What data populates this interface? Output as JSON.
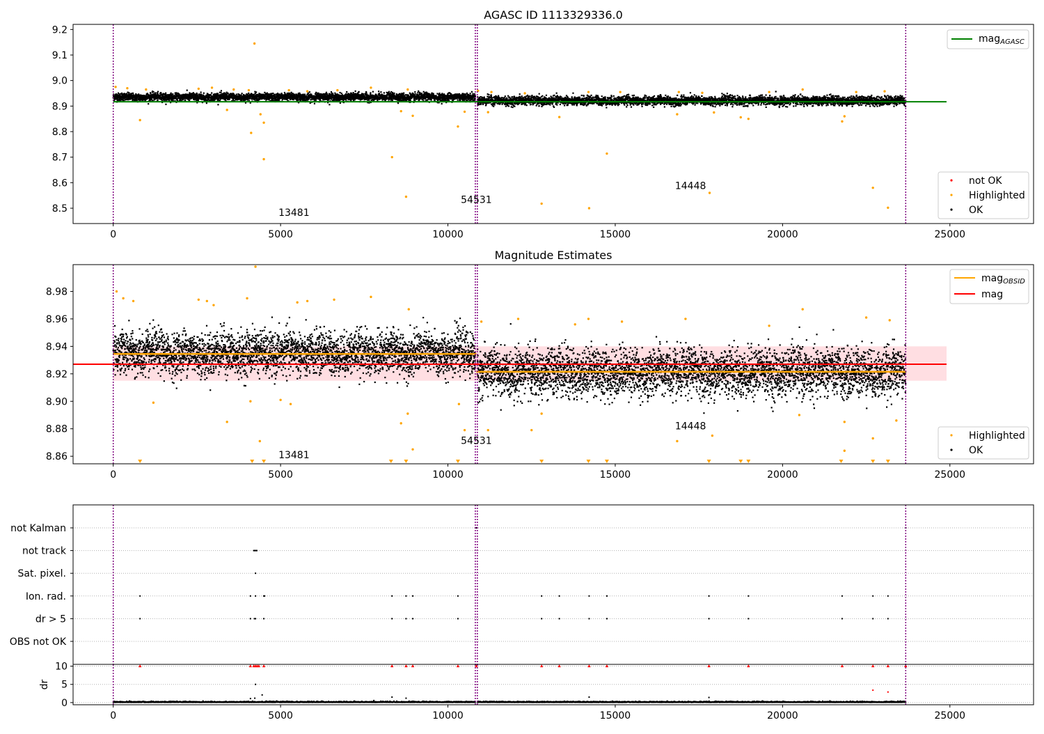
{
  "figure": {
    "title_top": "AGASC ID 1113329336.0",
    "title_middle": "Magnitude Estimates"
  },
  "colors": {
    "ok": "#000000",
    "highlighted": "#ffa500",
    "not_ok": "#ff0000",
    "mag_agasc": "#008000",
    "mag": "#ff0000",
    "mag_obsid": "#ffa500",
    "obsid_separator": "#800080",
    "band": "#ffd6db"
  },
  "chart_data": [
    {
      "id": "top",
      "type": "scatter",
      "title": "AGASC ID 1113329336.0",
      "xlim": [
        -1200,
        27500
      ],
      "ylim": [
        8.44,
        9.22
      ],
      "x_ticks": [
        0,
        5000,
        10000,
        15000,
        20000,
        25000
      ],
      "y_ticks": [
        8.5,
        8.6,
        8.7,
        8.8,
        8.9,
        9.0,
        9.1,
        9.2
      ],
      "y_tick_labels": [
        "8.5",
        "8.6",
        "8.7",
        "8.8",
        "8.9",
        "9.0",
        "9.1",
        "9.2"
      ],
      "obsid_boundaries": [
        0,
        10820,
        10880,
        23680
      ],
      "obsid_labels": [
        {
          "text": "13481",
          "x": 5400,
          "y": 8.47
        },
        {
          "text": "54531",
          "x": 10850,
          "y": 8.52
        },
        {
          "text": "14448",
          "x": 17250,
          "y": 8.575
        }
      ],
      "reference_lines": [
        {
          "name": "mag",
          "subscript": "AGASC",
          "y": 8.917,
          "x_range": [
            0,
            24900
          ],
          "color": "#008000"
        }
      ],
      "ok_segments": [
        {
          "x_range": [
            0,
            10820
          ],
          "mean": 8.935,
          "spread": 0.009
        },
        {
          "x_range": [
            10880,
            23680
          ],
          "mean": 8.921,
          "spread": 0.01
        }
      ],
      "highlighted_points": [
        [
          800,
          8.845
        ],
        [
          4120,
          8.795
        ],
        [
          4220,
          9.145
        ],
        [
          4400,
          8.868
        ],
        [
          4500,
          8.835
        ],
        [
          4500,
          8.692
        ],
        [
          3400,
          8.885
        ],
        [
          8330,
          8.7
        ],
        [
          8600,
          8.88
        ],
        [
          8750,
          8.545
        ],
        [
          8950,
          8.862
        ],
        [
          10300,
          8.82
        ],
        [
          10500,
          8.878
        ],
        [
          11200,
          8.876
        ],
        [
          12800,
          8.518
        ],
        [
          13330,
          8.857
        ],
        [
          14220,
          8.5
        ],
        [
          14750,
          8.714
        ],
        [
          16850,
          8.868
        ],
        [
          17820,
          8.56
        ],
        [
          17950,
          8.875
        ],
        [
          18750,
          8.856
        ],
        [
          18980,
          8.85
        ],
        [
          21780,
          8.84
        ],
        [
          21850,
          8.86
        ],
        [
          22700,
          8.58
        ],
        [
          23150,
          8.502
        ],
        [
          70,
          8.975
        ],
        [
          420,
          8.97
        ],
        [
          980,
          8.965
        ],
        [
          2550,
          8.968
        ],
        [
          2950,
          8.972
        ],
        [
          3600,
          8.965
        ],
        [
          4050,
          8.962
        ],
        [
          5250,
          8.962
        ],
        [
          5800,
          8.958
        ],
        [
          6700,
          8.962
        ],
        [
          7700,
          8.972
        ],
        [
          8800,
          8.965
        ],
        [
          10900,
          8.96
        ],
        [
          11300,
          8.955
        ],
        [
          12300,
          8.95
        ],
        [
          14200,
          8.955
        ],
        [
          15150,
          8.955
        ],
        [
          16900,
          8.955
        ],
        [
          17600,
          8.952
        ],
        [
          19600,
          8.955
        ],
        [
          20600,
          8.965
        ],
        [
          22200,
          8.955
        ],
        [
          23050,
          8.958
        ]
      ],
      "legend_lines": [
        {
          "label": "mag",
          "subscript": "AGASC"
        }
      ],
      "legend_points": [
        "not OK",
        "Highlighted",
        "OK"
      ]
    },
    {
      "id": "middle",
      "type": "scatter",
      "title": "Magnitude Estimates",
      "xlim": [
        -1200,
        27500
      ],
      "ylim": [
        8.8545,
        8.9995
      ],
      "x_ticks": [
        0,
        5000,
        10000,
        15000,
        20000,
        25000
      ],
      "y_ticks": [
        8.86,
        8.88,
        8.9,
        8.92,
        8.94,
        8.96,
        8.98
      ],
      "y_tick_labels": [
        "8.86",
        "8.88",
        "8.90",
        "8.92",
        "8.94",
        "8.96",
        "8.98"
      ],
      "obsid_boundaries": [
        0,
        10820,
        10880,
        23680
      ],
      "obsid_labels": [
        {
          "text": "13481",
          "x": 5400,
          "y": 8.8585
        },
        {
          "text": "54531",
          "x": 10850,
          "y": 8.869
        },
        {
          "text": "14448",
          "x": 17250,
          "y": 8.8795
        }
      ],
      "reference_lines": [
        {
          "name": "mag",
          "y": 8.927,
          "x_range": [
            -1200,
            24900
          ],
          "color": "#ff0000",
          "band": [
            8.915,
            8.94
          ]
        },
        {
          "name": "mag",
          "subscript": "OBSID",
          "segments": [
            {
              "x_range": [
                0,
                10850
              ],
              "y": 8.9345
            },
            {
              "x_range": [
                10850,
                23680
              ],
              "y": 8.9215
            }
          ],
          "color": "#ffa500"
        }
      ],
      "ok_segments": [
        {
          "x_range": [
            0,
            10820
          ],
          "mean": 8.935,
          "spread": 0.009
        },
        {
          "x_range": [
            10880,
            23680
          ],
          "mean": 8.921,
          "spread": 0.01
        }
      ],
      "highlighted_points": [
        [
          1200,
          8.899
        ],
        [
          3400,
          8.885
        ],
        [
          4100,
          8.9
        ],
        [
          4380,
          8.871
        ],
        [
          5000,
          8.901
        ],
        [
          5300,
          8.898
        ],
        [
          8600,
          8.884
        ],
        [
          8800,
          8.891
        ],
        [
          8950,
          8.865
        ],
        [
          10330,
          8.898
        ],
        [
          10500,
          8.879
        ],
        [
          11200,
          8.879
        ],
        [
          12500,
          8.879
        ],
        [
          12800,
          8.891
        ],
        [
          17900,
          8.875
        ],
        [
          16850,
          8.871
        ],
        [
          20500,
          8.89
        ],
        [
          21850,
          8.885
        ],
        [
          22700,
          8.873
        ],
        [
          23400,
          8.886
        ],
        [
          21850,
          8.864
        ],
        [
          100,
          8.98
        ],
        [
          300,
          8.975
        ],
        [
          600,
          8.973
        ],
        [
          2550,
          8.974
        ],
        [
          2800,
          8.973
        ],
        [
          3000,
          8.97
        ],
        [
          4000,
          8.975
        ],
        [
          4250,
          8.998
        ],
        [
          5500,
          8.972
        ],
        [
          5800,
          8.973
        ],
        [
          6600,
          8.974
        ],
        [
          7700,
          8.976
        ],
        [
          8830,
          8.967
        ],
        [
          11000,
          8.958
        ],
        [
          12100,
          8.96
        ],
        [
          13800,
          8.956
        ],
        [
          14200,
          8.96
        ],
        [
          15200,
          8.958
        ],
        [
          17100,
          8.96
        ],
        [
          19600,
          8.955
        ],
        [
          20600,
          8.967
        ],
        [
          22500,
          8.961
        ],
        [
          23200,
          8.959
        ]
      ],
      "below_axis_markers": [
        800,
        4150,
        4500,
        8300,
        8750,
        10300,
        12800,
        14200,
        14750,
        17800,
        18750,
        18980,
        21750,
        22700,
        23150
      ],
      "legend_lines": [
        {
          "label": "mag",
          "subscript": "OBSID"
        },
        {
          "label": "mag",
          "subscript": ""
        }
      ],
      "legend_points": [
        "Highlighted",
        "OK"
      ]
    },
    {
      "id": "flags",
      "type": "scatter",
      "xlim": [
        -1200,
        27500
      ],
      "categories": [
        "not Kalman",
        "not track",
        "Sat. pixel.",
        "Ion. rad.",
        "dr > 5",
        "OBS not OK"
      ],
      "obsid_boundaries": [
        0,
        10820,
        10880,
        23680
      ],
      "points": {
        "not Kalman": [
          10850,
          23680
        ],
        "not track": [
          4200,
          4230,
          4260,
          4290
        ],
        "Sat. pixel.": [
          4250
        ],
        "Ion. rad.": [
          800,
          4100,
          4250,
          4500,
          4520,
          8330,
          8750,
          8950,
          10300,
          12800,
          13330,
          14220,
          14750,
          17800,
          18980,
          21780,
          22700,
          23150
        ],
        "dr > 5": [
          800,
          4100,
          4220,
          4250,
          4500,
          8330,
          8750,
          8950,
          10300,
          12800,
          13330,
          14220,
          14750,
          17800,
          18980,
          21780,
          22700,
          23150
        ],
        "OBS not OK": []
      }
    },
    {
      "id": "dr",
      "type": "scatter",
      "xlim": [
        -1200,
        27500
      ],
      "ylim": [
        -0.6,
        10.5
      ],
      "y_ticks": [
        0,
        5,
        10
      ],
      "y_tick_labels": [
        "0",
        "5",
        "10"
      ],
      "x_ticks": [
        0,
        5000,
        10000,
        15000,
        20000,
        25000
      ],
      "x_tick_labels": [
        "0",
        "5000",
        "10000",
        "15000",
        "20000",
        "25000"
      ],
      "ylabel": "dr",
      "obsid_boundaries": [
        0,
        10820,
        10880,
        23680
      ],
      "clipped_points": [
        800,
        4100,
        4200,
        4250,
        4300,
        4350,
        4500,
        8330,
        8750,
        8950,
        10300,
        10850,
        12800,
        13330,
        14220,
        14750,
        17800,
        18980,
        21780,
        22700,
        23150,
        23680
      ],
      "outlier_points": [
        [
          4250,
          5.0
        ],
        [
          4230,
          1.2
        ],
        [
          4450,
          2.1
        ],
        [
          8330,
          1.5
        ],
        [
          8750,
          1.2
        ],
        [
          14220,
          1.5
        ],
        [
          17800,
          1.4
        ],
        [
          22700,
          3.4
        ],
        [
          23150,
          2.9
        ],
        [
          4100,
          1.1
        ]
      ]
    }
  ]
}
